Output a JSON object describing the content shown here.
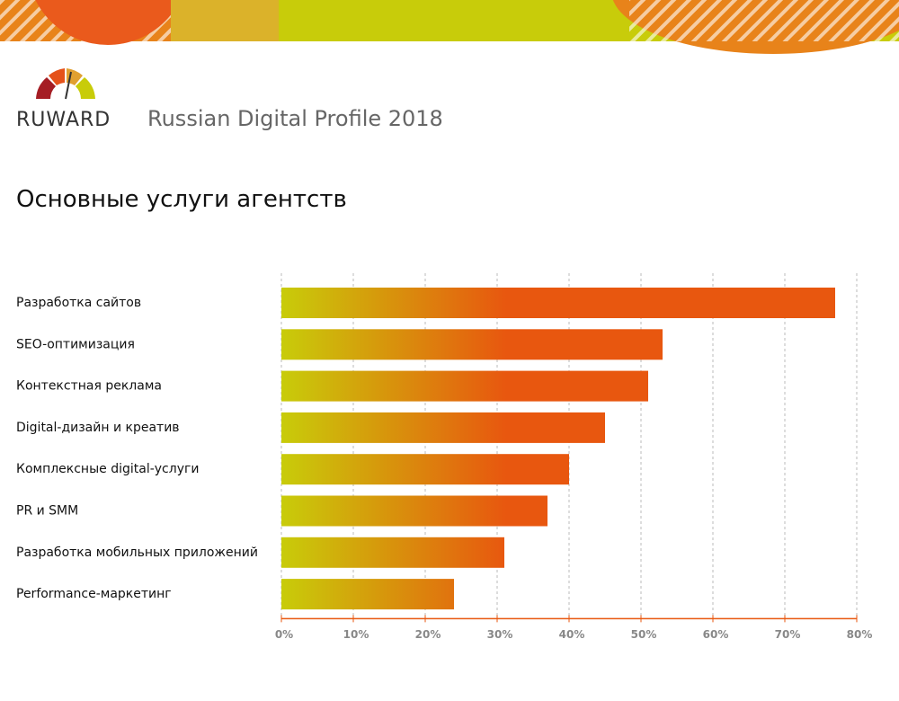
{
  "brand": "RUWARD",
  "header": "Russian Digital Profile 2018",
  "chart_data": {
    "type": "hbar",
    "title": "Основные услуги агентств",
    "categories": [
      "Разработка сайтов",
      "SEO-оптимизация",
      "Контекстная реклама",
      "Digital-дизайн и креатив",
      "Комплексные digital-услуги",
      "PR и SMM",
      "Разработка мобильных приложений",
      "Performance-маркетинг"
    ],
    "values": [
      77,
      53,
      51,
      45,
      40,
      37,
      31,
      24
    ],
    "gradient": [
      "#c8cc0a",
      "#e8570f"
    ],
    "xlim": [
      0,
      80
    ],
    "xticks": [
      {
        "value": 0,
        "label": "0%"
      },
      {
        "value": 10,
        "label": "10%"
      },
      {
        "value": 20,
        "label": "20%"
      },
      {
        "value": 30,
        "label": "30%"
      },
      {
        "value": 40,
        "label": "40%"
      },
      {
        "value": 50,
        "label": "50%"
      },
      {
        "value": 60,
        "label": "60%"
      },
      {
        "value": 70,
        "label": "70%"
      },
      {
        "value": 80,
        "label": "80%"
      }
    ],
    "grid": true
  }
}
